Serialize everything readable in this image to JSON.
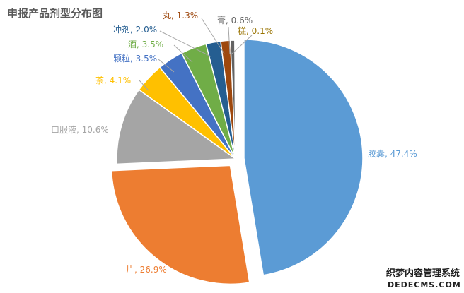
{
  "chart_data": {
    "type": "pie",
    "title": "申报产品剂型分布图",
    "slices": [
      {
        "label": "胶囊",
        "value": 47.4,
        "display": "胶囊, 47.4%",
        "color": "#5B9BD5",
        "exploded": true
      },
      {
        "label": "片",
        "value": 26.9,
        "display": "片, 26.9%",
        "color": "#ED7D31",
        "exploded": true
      },
      {
        "label": "口服液",
        "value": 10.6,
        "display": "口服液, 10.6%",
        "color": "#A5A5A5",
        "exploded": false
      },
      {
        "label": "茶",
        "value": 4.1,
        "display": "茶, 4.1%",
        "color": "#FFC000",
        "exploded": false
      },
      {
        "label": "颗粒",
        "value": 3.5,
        "display": "颗粒, 3.5%",
        "color": "#4472C4",
        "exploded": false
      },
      {
        "label": "酒",
        "value": 3.5,
        "display": "酒, 3.5%",
        "color": "#70AD47",
        "exploded": false
      },
      {
        "label": "冲剂",
        "value": 2.0,
        "display": "冲剂, 2.0%",
        "color": "#255E91",
        "exploded": false
      },
      {
        "label": "丸",
        "value": 1.3,
        "display": "丸, 1.3%",
        "color": "#9E480E",
        "exploded": false
      },
      {
        "label": "膏",
        "value": 0.6,
        "display": "膏, 0.6%",
        "color": "#636363",
        "exploded": false
      },
      {
        "label": "糕",
        "value": 0.1,
        "display": "糕, 0.1%",
        "color": "#997300",
        "exploded": false
      }
    ]
  },
  "watermark": {
    "line1": "织梦内容管理系统",
    "line2": "DEDECMS.COM"
  }
}
